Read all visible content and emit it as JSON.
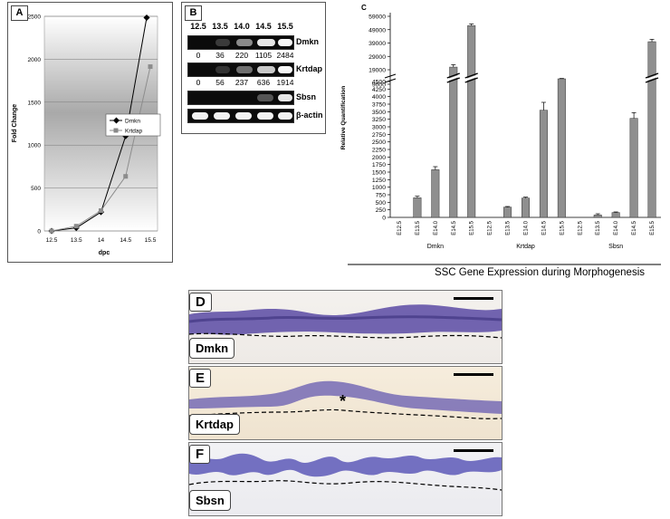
{
  "panelA": {
    "label": "A",
    "ylabel": "Fold Change",
    "xlabel": "dpc",
    "legend": [
      "Dmkn",
      "Krtdap"
    ]
  },
  "panelB": {
    "label": "B",
    "stages": [
      "12.5",
      "13.5",
      "14.0",
      "14.5",
      "15.5"
    ],
    "rows": [
      {
        "name": "Dmkn",
        "nums": [
          "0",
          "36",
          "220",
          "1105",
          "2484"
        ]
      },
      {
        "name": "Krtdap",
        "nums": [
          "0",
          "56",
          "237",
          "636",
          "1914"
        ]
      },
      {
        "name": "Sbsn",
        "nums": []
      },
      {
        "name": "β-actin",
        "nums": []
      }
    ]
  },
  "panelC": {
    "label": "C",
    "ylabel": "Relative Quantification",
    "caption": "SSC Gene Expression during Morphogenesis"
  },
  "panelD": {
    "letter": "D",
    "gene": "Dmkn"
  },
  "panelE": {
    "letter": "E",
    "gene": "Krtdap",
    "mark": "*"
  },
  "panelF": {
    "letter": "F",
    "gene": "Sbsn"
  },
  "chart_data": [
    {
      "type": "line",
      "x": [
        "12.5",
        "13.5",
        "14",
        "14.5",
        "15.5"
      ],
      "series": [
        {
          "name": "Dmkn",
          "values": [
            0,
            36,
            220,
            1105,
            2484
          ]
        },
        {
          "name": "Krtdap",
          "values": [
            0,
            56,
            237,
            636,
            1914
          ]
        }
      ],
      "ylim": [
        0,
        2500
      ],
      "yticks": [
        "0",
        "500",
        "1000",
        "1500",
        "2000",
        "2500"
      ],
      "xlabel": "dpc",
      "ylabel": "Fold Change",
      "legend_position": "top-left"
    },
    {
      "type": "bar",
      "categories": [
        "E12.5",
        "E13.5",
        "E14.0",
        "E14.5",
        "E15.5",
        "E12.5",
        "E13.5",
        "E14.0",
        "E14.5",
        "E15.5",
        "E12.5",
        "E13.5",
        "E14.0",
        "E14.5",
        "E15.5"
      ],
      "groups": [
        "Dmkn",
        "Krtdap",
        "Sbsn"
      ],
      "values": [
        0,
        650,
        1580,
        21000,
        52000,
        0,
        340,
        640,
        3550,
        9000,
        0,
        80,
        160,
        3280,
        40000
      ],
      "errors": [
        0,
        50,
        100,
        1800,
        1300,
        0,
        20,
        30,
        260,
        400,
        0,
        40,
        20,
        190,
        1800
      ],
      "yticks": [
        "0",
        "250",
        "500",
        "750",
        "1000",
        "1250",
        "1500",
        "1750",
        "2000",
        "2250",
        "2500",
        "2750",
        "3000",
        "3250",
        "3500",
        "3750",
        "4000",
        "4250",
        "4500",
        "9000",
        "19000",
        "29000",
        "39000",
        "49000",
        "59000"
      ],
      "ylabel": "Relative Quantification",
      "axis_breaks": [
        4500,
        9000
      ]
    }
  ]
}
